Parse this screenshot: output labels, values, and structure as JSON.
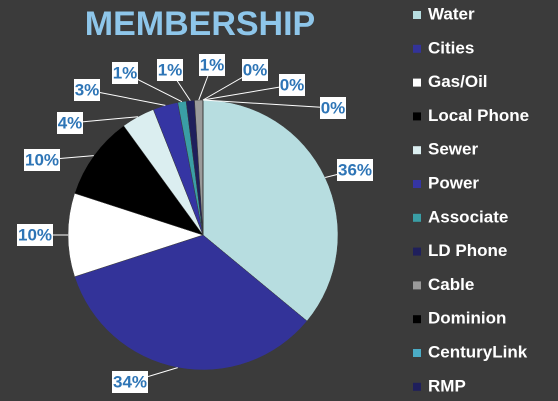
{
  "chart_data": {
    "type": "pie",
    "title": "MEMBERSHIP",
    "categories": [
      "Water",
      "Cities",
      "Gas/Oil",
      "Local Phone",
      "Sewer",
      "Power",
      "Associate",
      "LD Phone",
      "Cable",
      "Dominion",
      "CenturyLink",
      "RMP"
    ],
    "values": [
      36,
      34,
      10,
      10,
      4,
      3,
      1,
      1,
      1,
      0,
      0,
      0
    ],
    "value_labels": [
      "36%",
      "34%",
      "10%",
      "10%",
      "4%",
      "3%",
      "1%",
      "1%",
      "1%",
      "0%",
      "0%",
      "0%"
    ],
    "colors": [
      "#b7dde0",
      "#333399",
      "#ffffff",
      "#000000",
      "#dbeef0",
      "#3535a3",
      "#3a9ea5",
      "#1f1f5c",
      "#9a9a9a",
      "#000000",
      "#4bacc6",
      "#1f1f5c"
    ],
    "legend": "right"
  }
}
